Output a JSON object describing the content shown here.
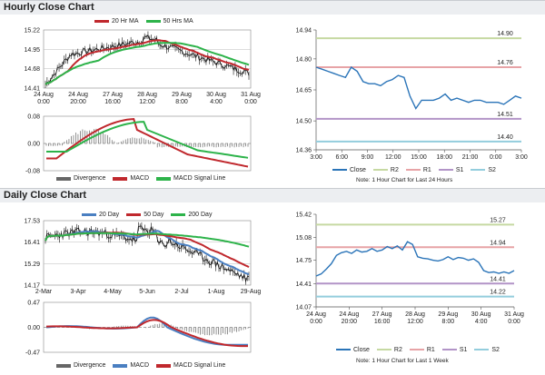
{
  "hourly": {
    "title": "Hourly Close Chart",
    "price": {
      "legend": [
        {
          "name": "20 Hr MA",
          "color": "#c0282d"
        },
        {
          "name": "50 Hrs MA",
          "color": "#2db34a"
        }
      ],
      "y_ticks": [
        "15.22",
        "14.95",
        "14.68",
        "14.41"
      ],
      "ylim": [
        14.41,
        15.22
      ],
      "x_ticks": [
        "24 Aug\n0:00",
        "24 Aug\n20:00",
        "27 Aug\n16:00",
        "28 Aug\n12:00",
        "29 Aug\n8:00",
        "30 Aug\n4:00",
        "31 Aug\n0:00"
      ]
    },
    "macd": {
      "y_ticks": [
        "0.08",
        "0.00",
        "-0.08"
      ],
      "ylim": [
        -0.08,
        0.08
      ],
      "legend": [
        {
          "name": "Divergence",
          "color": "#666666"
        },
        {
          "name": "MACD",
          "color": "#c0282d"
        },
        {
          "name": "MACD Signal Line",
          "color": "#2db34a"
        }
      ]
    }
  },
  "daily": {
    "title": "Daily Close Chart",
    "price": {
      "legend": [
        {
          "name": "20 Day",
          "color": "#4a7fc1"
        },
        {
          "name": "50 Day",
          "color": "#c0282d"
        },
        {
          "name": "200 Day",
          "color": "#2db34a"
        }
      ],
      "y_ticks": [
        "17.53",
        "16.41",
        "15.29",
        "14.17"
      ],
      "ylim": [
        14.17,
        17.53
      ],
      "x_ticks": [
        "2-Mar",
        "3-Apr",
        "4-May",
        "5-Jun",
        "2-Jul",
        "1-Aug",
        "29-Aug"
      ]
    },
    "macd": {
      "y_ticks": [
        "0.47",
        "0.00",
        "-0.47"
      ],
      "ylim": [
        -0.47,
        0.47
      ],
      "legend": [
        {
          "name": "Divergence",
          "color": "#666666"
        },
        {
          "name": "MACD",
          "color": "#4a7fc1"
        },
        {
          "name": "MACD Signal Line",
          "color": "#c0282d"
        }
      ]
    }
  },
  "pivot_legend": [
    {
      "name": "Close",
      "color": "#2a74b8"
    },
    {
      "name": "R2",
      "color": "#c6d9a2"
    },
    {
      "name": "R1",
      "color": "#e7a3a6"
    },
    {
      "name": "S1",
      "color": "#b294c7"
    },
    {
      "name": "S2",
      "color": "#93cddd"
    }
  ],
  "notes": {
    "hourly": "Note: 1 Hour Chart for Last 24 Hours",
    "weekly": "Note: 1 Hour Chart for Last 1 Week"
  },
  "chart_data": [
    {
      "id": "hourly-24h",
      "type": "line",
      "y_ticks": [
        "14.94",
        "14.80",
        "14.65",
        "14.50",
        "14.36"
      ],
      "ylim": [
        14.36,
        14.94
      ],
      "x_ticks": [
        "3:00",
        "6:00",
        "9:00",
        "12:00",
        "15:00",
        "18:00",
        "21:00",
        "0:00",
        "3:00"
      ],
      "series": [
        {
          "name": "Close",
          "values": [
            14.76,
            14.75,
            14.74,
            14.73,
            14.72,
            14.71,
            14.76,
            14.74,
            14.69,
            14.68,
            14.68,
            14.67,
            14.69,
            14.7,
            14.72,
            14.71,
            14.62,
            14.56,
            14.6,
            14.6,
            14.6,
            14.61,
            14.63,
            14.6,
            14.61,
            14.6,
            14.59,
            14.6,
            14.6,
            14.59,
            14.59,
            14.59,
            14.58,
            14.6,
            14.62,
            14.61
          ]
        }
      ],
      "levels": [
        {
          "name": "R2",
          "label": "14.90",
          "value": 14.9,
          "color": "#c6d9a2"
        },
        {
          "name": "R1",
          "label": "14.76",
          "value": 14.76,
          "color": "#e7a3a6"
        },
        {
          "name": "S1",
          "label": "14.51",
          "value": 14.51,
          "color": "#b294c7"
        },
        {
          "name": "S2",
          "label": "14.40",
          "value": 14.4,
          "color": "#93cddd"
        }
      ]
    },
    {
      "id": "hourly-1w",
      "type": "line",
      "y_ticks": [
        "15.42",
        "15.08",
        "14.75",
        "14.41",
        "14.07"
      ],
      "ylim": [
        14.07,
        15.42
      ],
      "x_ticks": [
        "24 Aug\n0:00",
        "24 Aug\n20:00",
        "27 Aug\n16:00",
        "28 Aug\n12:00",
        "29 Aug\n8:00",
        "30 Aug\n4:00",
        "31 Aug\n0:00"
      ],
      "series": [
        {
          "name": "Close",
          "values": [
            14.52,
            14.55,
            14.62,
            14.7,
            14.82,
            14.86,
            14.88,
            14.85,
            14.9,
            14.87,
            14.88,
            14.92,
            14.88,
            14.9,
            14.95,
            14.92,
            14.96,
            14.9,
            15.02,
            14.98,
            14.8,
            14.78,
            14.77,
            14.75,
            14.74,
            14.76,
            14.8,
            14.76,
            14.79,
            14.78,
            14.75,
            14.77,
            14.72,
            14.6,
            14.57,
            14.58,
            14.56,
            14.58,
            14.56,
            14.6
          ]
        }
      ],
      "levels": [
        {
          "name": "R2",
          "label": "15.27",
          "value": 15.27,
          "color": "#c6d9a2"
        },
        {
          "name": "R1",
          "label": "14.94",
          "value": 14.94,
          "color": "#e7a3a6"
        },
        {
          "name": "S1",
          "label": "14.41",
          "value": 14.41,
          "color": "#b294c7"
        },
        {
          "name": "S2",
          "label": "14.22",
          "value": 14.22,
          "color": "#93cddd"
        }
      ]
    }
  ]
}
